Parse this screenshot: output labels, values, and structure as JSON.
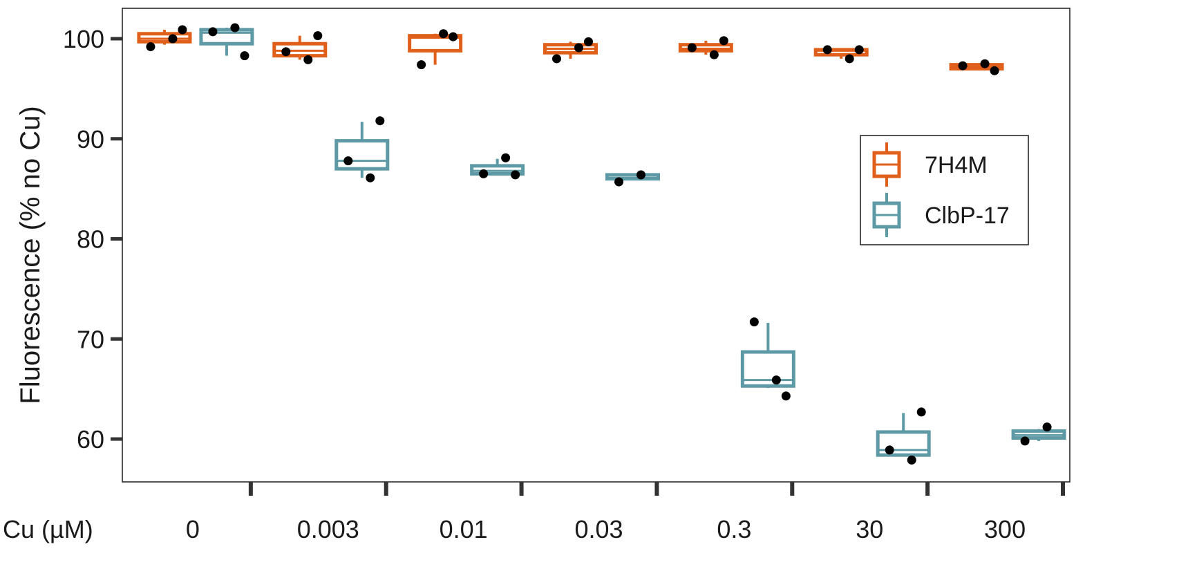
{
  "chart_data": {
    "type": "boxplot",
    "ylabel": "Fluorescence (% no Cu)",
    "xlabel": "Cu (µM)",
    "ylim": [
      56,
      103.5
    ],
    "yticks": [
      60,
      70,
      80,
      90,
      100
    ],
    "categories": [
      "0",
      "0.003",
      "0.01",
      "0.03",
      "0.3",
      "30",
      "300"
    ],
    "grid": false,
    "legend_position": "right",
    "series": [
      {
        "name": "7H4M",
        "color": "#e0601b",
        "boxes": [
          {
            "category": "0",
            "min": 99.4,
            "q1": 99.7,
            "median": 100.0,
            "q3": 100.5,
            "max": 100.9,
            "points": [
              99.2,
              100.0,
              100.9
            ]
          },
          {
            "category": "0.003",
            "min": 97.9,
            "q1": 98.3,
            "median": 98.8,
            "q3": 99.5,
            "max": 100.3,
            "points": [
              98.7,
              97.9,
              100.3
            ]
          },
          {
            "category": "0.01",
            "min": 97.4,
            "q1": 98.8,
            "median": 100.1,
            "q3": 100.3,
            "max": 100.5,
            "points": [
              97.4,
              100.5,
              100.2
            ]
          },
          {
            "category": "0.03",
            "min": 98.0,
            "q1": 98.6,
            "median": 99.0,
            "q3": 99.4,
            "max": 99.7,
            "points": [
              98.0,
              99.1,
              99.7
            ]
          },
          {
            "category": "0.3",
            "min": 98.4,
            "q1": 98.8,
            "median": 99.0,
            "q3": 99.4,
            "max": 99.8,
            "points": [
              99.1,
              98.4,
              99.8
            ]
          },
          {
            "category": "30",
            "min": 98.0,
            "q1": 98.4,
            "median": 98.8,
            "q3": 98.9,
            "max": 98.9,
            "points": [
              98.9,
              98.0,
              98.9
            ]
          },
          {
            "category": "300",
            "min": 96.9,
            "q1": 97.0,
            "median": 97.2,
            "q3": 97.4,
            "max": 97.5,
            "points": [
              97.3,
              97.5,
              96.8
            ]
          }
        ]
      },
      {
        "name": "ClbP-17",
        "color": "#5e9aa6",
        "boxes": [
          {
            "category": "0",
            "min": 98.3,
            "q1": 99.5,
            "median": 100.6,
            "q3": 100.9,
            "max": 101.1,
            "points": [
              100.7,
              101.1,
              98.3
            ]
          },
          {
            "category": "0.003",
            "min": 86.1,
            "q1": 87.0,
            "median": 87.8,
            "q3": 89.8,
            "max": 91.7,
            "points": [
              87.8,
              86.1,
              91.8
            ]
          },
          {
            "category": "0.01",
            "min": 86.4,
            "q1": 86.5,
            "median": 86.8,
            "q3": 87.3,
            "max": 88.0,
            "points": [
              86.5,
              88.1,
              86.4
            ]
          },
          {
            "category": "0.03",
            "min": 85.9,
            "q1": 86.0,
            "median": 86.1,
            "q3": 86.4,
            "max": 86.4,
            "points": [
              85.7,
              86.4
            ]
          },
          {
            "category": "0.3",
            "min": 65.1,
            "q1": 65.3,
            "median": 65.9,
            "q3": 68.7,
            "max": 71.6,
            "points": [
              71.7,
              65.9,
              64.3
            ]
          },
          {
            "category": "30",
            "min": 58.3,
            "q1": 58.4,
            "median": 58.9,
            "q3": 60.7,
            "max": 62.6,
            "points": [
              58.9,
              57.9,
              62.7
            ]
          },
          {
            "category": "300",
            "min": 59.8,
            "q1": 60.1,
            "median": 60.4,
            "q3": 60.8,
            "max": 61.0,
            "points": [
              59.8,
              61.2
            ]
          }
        ]
      }
    ]
  }
}
